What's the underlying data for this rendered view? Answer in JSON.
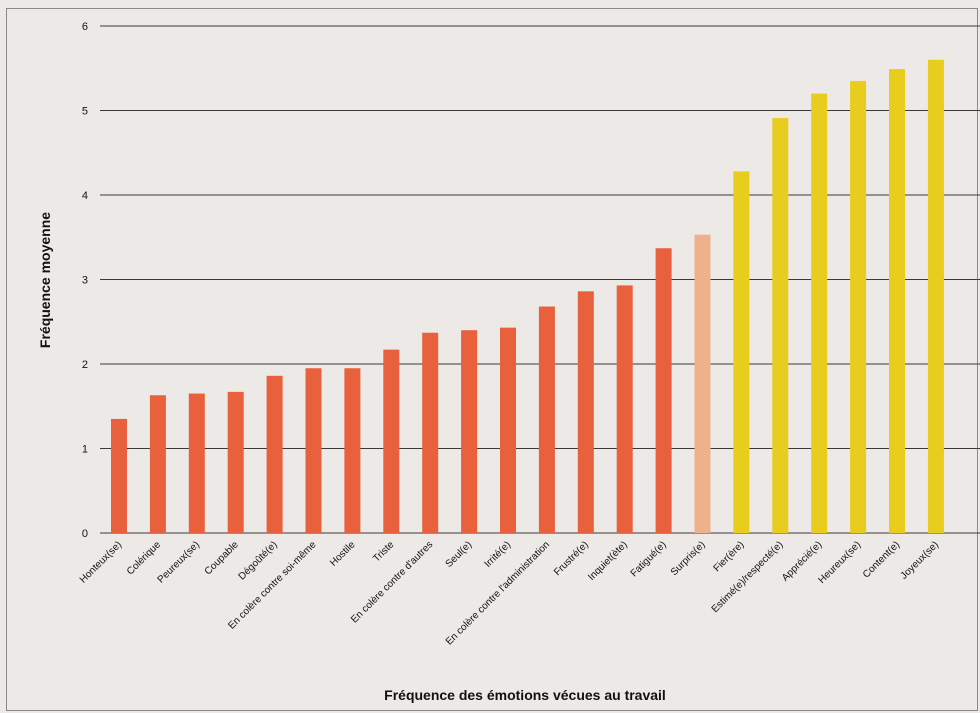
{
  "chart_data": {
    "type": "bar",
    "xlabel": "Fréquence des émotions vécues au travail",
    "ylabel": "Fréquence moyenne",
    "ylim": [
      0,
      6
    ],
    "yticks": [
      0,
      1,
      2,
      3,
      4,
      5,
      6
    ],
    "grid": true,
    "colors": {
      "negative": "#e8603c",
      "surprise": "#efb08c",
      "positive": "#e8cc1e",
      "grid": "#3a3a3a"
    },
    "categories": [
      "Honteux(se)",
      "Colérique",
      "Peureux(se)",
      "Coupable",
      "Dégoûté(e)",
      "En colère contre soi-même",
      "Hostile",
      "Triste",
      "En colère contre d'autres",
      "Seul(e)",
      "Irrité(e)",
      "En colère contre l'administration",
      "Frustré(e)",
      "Inquiet(ète)",
      "Fatigué(e)",
      "Surpris(e)",
      "Fier(ère)",
      "Estimé(e)/respecté(e)",
      "Apprécié(e)",
      "Heureux(se)",
      "Content(e)",
      "Joyeux(se)"
    ],
    "values": [
      1.35,
      1.63,
      1.65,
      1.67,
      1.86,
      1.95,
      1.95,
      2.17,
      2.37,
      2.4,
      2.43,
      2.68,
      2.86,
      2.93,
      3.37,
      3.53,
      4.28,
      4.91,
      5.2,
      5.35,
      5.49,
      5.6
    ],
    "groups": [
      "negative",
      "negative",
      "negative",
      "negative",
      "negative",
      "negative",
      "negative",
      "negative",
      "negative",
      "negative",
      "negative",
      "negative",
      "negative",
      "negative",
      "negative",
      "surprise",
      "positive",
      "positive",
      "positive",
      "positive",
      "positive",
      "positive"
    ]
  }
}
